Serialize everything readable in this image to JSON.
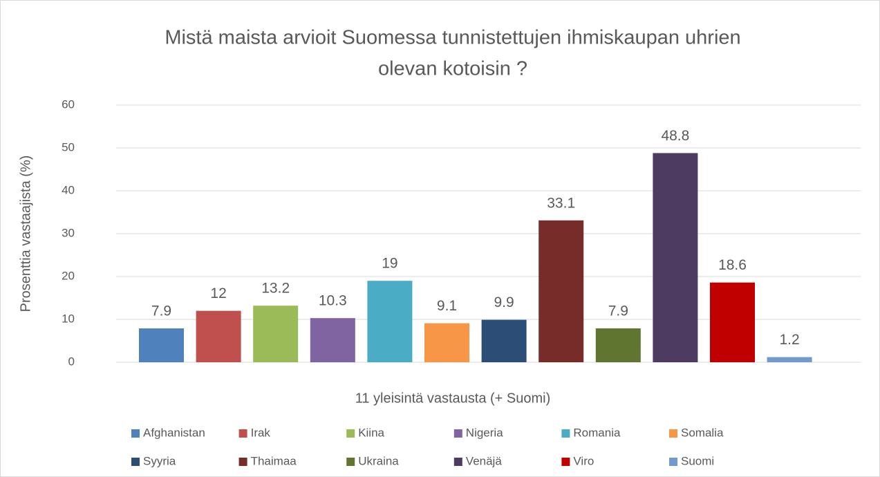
{
  "chart_data": {
    "type": "bar",
    "title": [
      "Mistä maista arvioit Suomessa tunnistettujen ihmiskaupan uhrien",
      "olevan kotoisin ?"
    ],
    "x_label": "11 yleisintä vastausta (+ Suomi)",
    "y_label": "Prosenttia vastaajista (%)",
    "ylim": [
      0,
      60
    ],
    "yticks": [
      0,
      10,
      20,
      30,
      40,
      50,
      60
    ],
    "grid": true,
    "legend": "bottom",
    "series": [
      {
        "name": "Afghanistan",
        "color": "#4f81bd",
        "values": [
          7.9
        ]
      },
      {
        "name": "Irak",
        "color": "#c0504d",
        "values": [
          12
        ]
      },
      {
        "name": "Kiina",
        "color": "#9bbb59",
        "values": [
          13.2
        ]
      },
      {
        "name": "Nigeria",
        "color": "#8064a2",
        "values": [
          10.3
        ]
      },
      {
        "name": "Romania",
        "color": "#4bacc6",
        "values": [
          19
        ]
      },
      {
        "name": "Somalia",
        "color": "#f79646",
        "values": [
          9.1
        ]
      },
      {
        "name": "Syyria",
        "color": "#2c4d75",
        "values": [
          9.9
        ]
      },
      {
        "name": "Thaimaa",
        "color": "#772c2a",
        "values": [
          33.1
        ]
      },
      {
        "name": "Ukraina",
        "color": "#5f7530",
        "values": [
          7.9
        ]
      },
      {
        "name": "Venäjä",
        "color": "#4d3b62",
        "values": [
          48.8
        ]
      },
      {
        "name": "Viro",
        "color": "#c00000",
        "values": [
          18.6
        ]
      },
      {
        "name": "Suomi",
        "color": "#729aca",
        "values": [
          1.2
        ]
      }
    ]
  }
}
